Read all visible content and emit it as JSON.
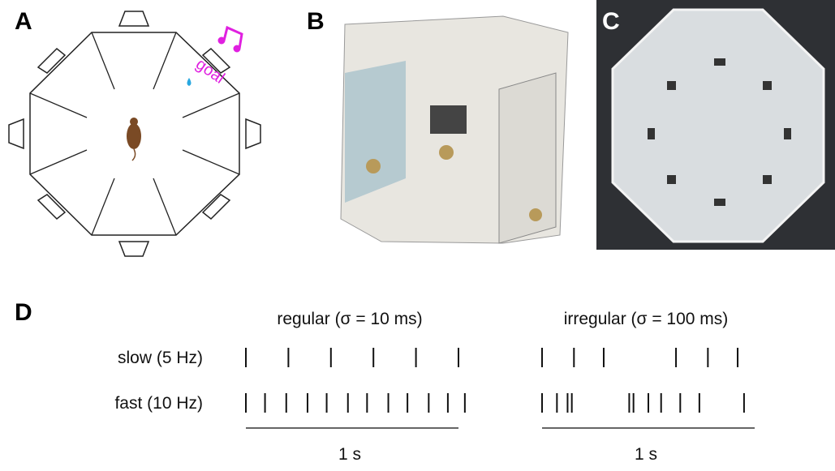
{
  "panels": {
    "a": {
      "label": "A",
      "annotation": "goal"
    },
    "b": {
      "label": "B"
    },
    "c": {
      "label": "C"
    },
    "d": {
      "label": "D",
      "row_labels": [
        "slow (5 Hz)",
        "fast (10 Hz)"
      ],
      "columns": [
        {
          "title": "regular (σ = 10 ms)",
          "scale_bar": "1 s",
          "spike_times_s": [
            [
              0,
              0.2,
              0.4,
              0.6,
              0.8,
              1.0
            ],
            [
              0,
              0.09,
              0.19,
              0.29,
              0.38,
              0.48,
              0.57,
              0.67,
              0.76,
              0.86,
              0.95,
              1.03
            ]
          ]
        },
        {
          "title": "irregular (σ = 100 ms)",
          "scale_bar": "1 s",
          "spike_times_s": [
            [
              0,
              0.15,
              0.29,
              0.63,
              0.78,
              0.92
            ],
            [
              0,
              0.07,
              0.12,
              0.14,
              0.41,
              0.43,
              0.5,
              0.56,
              0.65,
              0.74,
              0.95
            ]
          ]
        }
      ]
    }
  }
}
